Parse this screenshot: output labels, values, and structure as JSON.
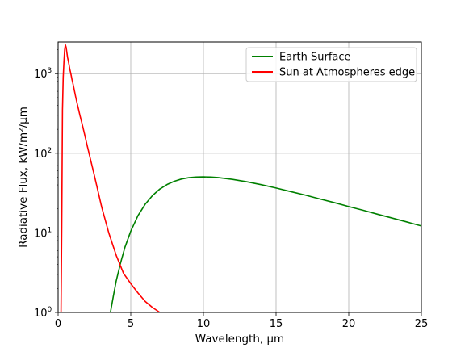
{
  "chart_data": {
    "type": "line",
    "title": "",
    "xlabel": "Wavelength, μm",
    "ylabel": "Radiative Flux, kW/m²/μm",
    "xlim": [
      0,
      25
    ],
    "ylim": [
      1,
      2500
    ],
    "yscale": "log",
    "grid": true,
    "legend_position": "top-right",
    "x_ticks": [
      "0",
      "5",
      "10",
      "15",
      "20",
      "25"
    ],
    "y_ticks": [
      {
        "base": "10",
        "exp": "0"
      },
      {
        "base": "10",
        "exp": "1"
      },
      {
        "base": "10",
        "exp": "2"
      },
      {
        "base": "10",
        "exp": "3"
      }
    ],
    "series": [
      {
        "name": "Earth Surface",
        "color": "#008000",
        "x": [
          3.6,
          3.8,
          4.0,
          4.3,
          4.6,
          5.0,
          5.5,
          6.0,
          6.5,
          7.0,
          7.5,
          8.0,
          8.5,
          9.0,
          9.5,
          10.0,
          10.5,
          11.0,
          12.0,
          13.0,
          14.0,
          15.0,
          16.0,
          17.0,
          18.0,
          19.0,
          20.0,
          21.0,
          22.0,
          23.0,
          24.0,
          25.0
        ],
        "y": [
          1.0,
          1.6,
          2.5,
          4.2,
          6.6,
          10.5,
          16.5,
          23.0,
          29.5,
          35.5,
          40.5,
          44.5,
          47.5,
          49.3,
          50.3,
          50.5,
          50.2,
          49.5,
          47.0,
          43.8,
          40.2,
          36.6,
          33.0,
          29.8,
          26.7,
          24.0,
          21.4,
          19.2,
          17.1,
          15.3,
          13.7,
          12.2
        ]
      },
      {
        "name": "Sun at Atmospheres edge",
        "color": "#ff0000",
        "x": [
          0.2,
          0.25,
          0.3,
          0.35,
          0.4,
          0.45,
          0.5,
          0.55,
          0.6,
          0.65,
          0.7,
          0.75,
          0.8,
          0.85,
          0.9,
          0.95,
          1.0,
          1.1,
          1.2,
          1.3,
          1.4,
          1.5,
          1.6,
          1.7,
          1.8,
          2.0,
          2.2,
          2.5,
          3.0,
          3.5,
          4.0,
          4.5,
          5.0,
          5.5,
          6.0,
          6.5,
          7.0
        ],
        "y": [
          1.0,
          12,
          350,
          900,
          1400,
          2000,
          2300,
          2150,
          1850,
          1600,
          1450,
          1300,
          1150,
          1050,
          950,
          850,
          780,
          640,
          520,
          430,
          360,
          300,
          255,
          215,
          180,
          125,
          88,
          52,
          21,
          9.8,
          5.2,
          3.1,
          2.3,
          1.75,
          1.37,
          1.15,
          1.0
        ]
      }
    ]
  }
}
